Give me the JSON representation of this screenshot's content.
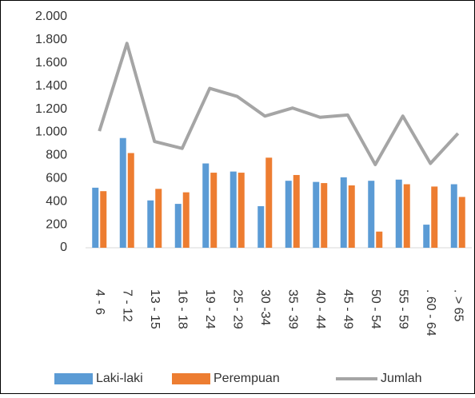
{
  "chart_data": {
    "type": "bar-line",
    "categories": [
      "4 - 6",
      "7 - 12",
      "13 - 15",
      "16 - 18",
      "19 - 24",
      "25 - 29",
      "30 -34",
      "35 - 39",
      "40 - 44",
      "45 - 49",
      "50 - 54",
      "55 - 59",
      ". 60 - 64",
      ". > 65"
    ],
    "series": [
      {
        "name": "Laki-laki",
        "color": "#5b9bd5",
        "kind": "bar",
        "values": [
          520,
          950,
          410,
          380,
          730,
          660,
          360,
          580,
          570,
          610,
          580,
          590,
          200,
          550
        ]
      },
      {
        "name": "Perempuan",
        "color": "#ed7d31",
        "kind": "bar",
        "values": [
          490,
          820,
          510,
          480,
          650,
          650,
          780,
          630,
          560,
          540,
          140,
          550,
          530,
          440
        ]
      },
      {
        "name": "Jumlah",
        "color": "#a5a5a5",
        "kind": "line",
        "values": [
          1010,
          1770,
          920,
          860,
          1380,
          1310,
          1140,
          1210,
          1130,
          1150,
          720,
          1140,
          730,
          990
        ]
      }
    ],
    "ylim": [
      0,
      2000
    ],
    "yticks": [
      0,
      200,
      400,
      600,
      800,
      {
        "value": 1000,
        "label": "1.000"
      },
      {
        "value": 1200,
        "label": "1.200"
      },
      {
        "value": 1400,
        "label": "1.400"
      },
      {
        "value": 1600,
        "label": "1.600"
      },
      {
        "value": 1800,
        "label": "1.800"
      },
      {
        "value": 2000,
        "label": "2.000"
      }
    ],
    "grid": false,
    "legend": "bottom"
  }
}
